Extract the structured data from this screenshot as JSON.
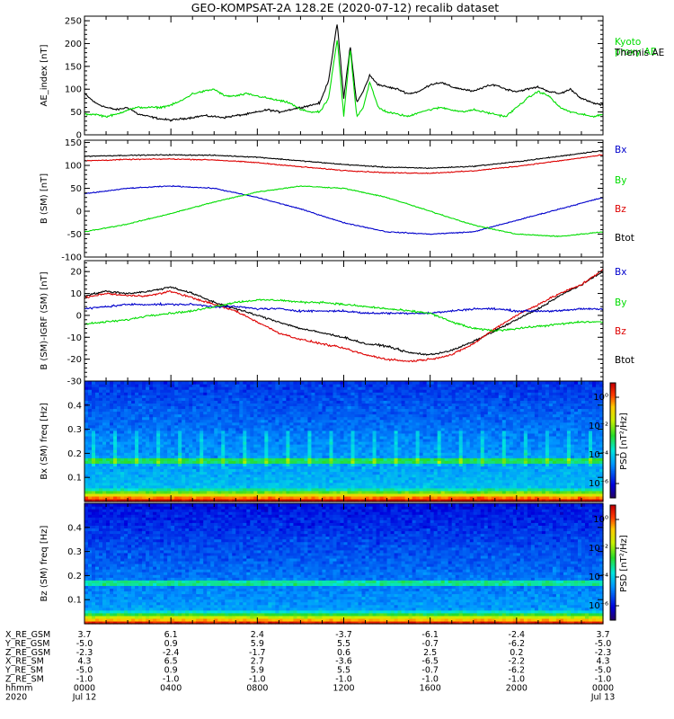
{
  "chart_data": {
    "title": "GEO-KOMPSAT-2A 128.2E (2020-07-12) recalib dataset",
    "panels": [
      {
        "type": "line",
        "ylabel": "AE_index [nT]",
        "ylim": [
          0,
          260
        ],
        "yticks": [
          0,
          50,
          100,
          150,
          200,
          250
        ],
        "legend": [
          {
            "name": "Kyoto proxy AE",
            "lines": [
              "Kyoto",
              "proxy AE"
            ],
            "color": "#00dd00"
          },
          {
            "name": "Themis AE",
            "lines": [
              "Themis AE"
            ],
            "color": "#000000"
          }
        ],
        "series": [
          {
            "name": "Themis AE",
            "color": "#000000",
            "x": [
              0,
              0.5,
              1,
              1.5,
              2,
              2.5,
              3,
              3.5,
              4,
              4.5,
              5,
              5.5,
              6,
              6.5,
              7,
              7.5,
              8,
              8.5,
              9,
              9.5,
              10,
              10.5,
              10.9,
              11.3,
              11.7,
              12.0,
              12.3,
              12.6,
              12.9,
              13.2,
              13.6,
              14,
              14.5,
              15,
              15.5,
              16,
              16.5,
              17,
              17.5,
              18,
              18.5,
              19,
              19.5,
              20,
              20.5,
              21,
              21.5,
              22,
              22.5,
              23,
              23.5,
              24
            ],
            "values": [
              90,
              70,
              60,
              55,
              60,
              45,
              40,
              35,
              32,
              35,
              38,
              42,
              40,
              38,
              42,
              45,
              50,
              55,
              50,
              55,
              60,
              65,
              70,
              120,
              245,
              80,
              195,
              70,
              95,
              130,
              110,
              105,
              100,
              90,
              95,
              110,
              115,
              105,
              100,
              95,
              105,
              110,
              100,
              95,
              100,
              105,
              95,
              90,
              100,
              80,
              70,
              65
            ]
          },
          {
            "name": "Kyoto proxy AE",
            "color": "#00dd00",
            "x": [
              0,
              0.5,
              1,
              1.5,
              2,
              2.5,
              3,
              3.5,
              4,
              4.5,
              5,
              5.5,
              6,
              6.5,
              7,
              7.5,
              8,
              8.5,
              9,
              9.5,
              10,
              10.5,
              10.9,
              11.3,
              11.7,
              12.0,
              12.3,
              12.6,
              12.9,
              13.2,
              13.6,
              14,
              14.5,
              15,
              15.5,
              16,
              16.5,
              17,
              17.5,
              18,
              18.5,
              19,
              19.5,
              20,
              20.5,
              21,
              21.5,
              22,
              22.5,
              23,
              23.5,
              24
            ],
            "values": [
              45,
              45,
              40,
              45,
              55,
              60,
              60,
              60,
              65,
              75,
              90,
              95,
              100,
              85,
              85,
              90,
              85,
              80,
              75,
              70,
              55,
              50,
              50,
              80,
              210,
              40,
              190,
              40,
              60,
              115,
              60,
              50,
              45,
              40,
              50,
              55,
              60,
              55,
              50,
              55,
              50,
              45,
              40,
              60,
              80,
              95,
              85,
              60,
              50,
              45,
              40,
              45
            ]
          }
        ]
      },
      {
        "type": "line",
        "ylabel": "B (SM) [nT]",
        "ylim": [
          -100,
          155
        ],
        "yticks": [
          -100,
          -50,
          0,
          50,
          100,
          150
        ],
        "legend": [
          {
            "name": "Bx",
            "lines": [
              "Bx"
            ],
            "color": "#0000cc"
          },
          {
            "name": "By",
            "lines": [
              "By"
            ],
            "color": "#00dd00"
          },
          {
            "name": "Bz",
            "lines": [
              "Bz"
            ],
            "color": "#dd0000"
          },
          {
            "name": "Btot",
            "lines": [
              "Btot"
            ],
            "color": "#000000"
          }
        ],
        "series": [
          {
            "name": "Btot",
            "color": "#000000",
            "x": [
              0,
              2,
              4,
              6,
              8,
              10,
              12,
              14,
              16,
              18,
              20,
              22,
              24
            ],
            "values": [
              120,
              122,
              123,
              122,
              118,
              110,
              102,
              96,
              94,
              98,
              108,
              120,
              133
            ]
          },
          {
            "name": "Bz",
            "color": "#dd0000",
            "x": [
              0,
              2,
              4,
              6,
              8,
              10,
              12,
              14,
              16,
              18,
              20,
              22,
              24
            ],
            "values": [
              110,
              113,
              114,
              112,
              106,
              97,
              89,
              84,
              83,
              88,
              98,
              110,
              123
            ]
          },
          {
            "name": "Bx",
            "color": "#0000cc",
            "x": [
              0,
              2,
              4,
              6,
              8,
              10,
              12,
              14,
              16,
              18,
              20,
              22,
              24
            ],
            "values": [
              38,
              50,
              55,
              50,
              30,
              5,
              -25,
              -45,
              -50,
              -45,
              -20,
              5,
              30
            ]
          },
          {
            "name": "By",
            "color": "#00dd00",
            "x": [
              0,
              2,
              4,
              6,
              8,
              10,
              12,
              14,
              16,
              18,
              20,
              22,
              24
            ],
            "values": [
              -45,
              -28,
              -5,
              20,
              42,
              55,
              50,
              30,
              0,
              -30,
              -50,
              -55,
              -45
            ]
          }
        ]
      },
      {
        "type": "line",
        "ylabel": "B (SM)-IGRF (SM) [nT]",
        "ylim": [
          -30,
          25
        ],
        "yticks": [
          -30,
          -20,
          -10,
          0,
          10,
          20
        ],
        "legend": [
          {
            "name": "Bx",
            "lines": [
              "Bx"
            ],
            "color": "#0000cc"
          },
          {
            "name": "By",
            "lines": [
              "By"
            ],
            "color": "#00dd00"
          },
          {
            "name": "Bz",
            "lines": [
              "Bz"
            ],
            "color": "#dd0000"
          },
          {
            "name": "Btot",
            "lines": [
              "Btot"
            ],
            "color": "#000000"
          }
        ],
        "series": [
          {
            "name": "Btot",
            "color": "#000000",
            "x": [
              0,
              1,
              2,
              3,
              4,
              5,
              6,
              7,
              8,
              9,
              10,
              11,
              12,
              13,
              14,
              15,
              16,
              17,
              18,
              19,
              20,
              21,
              22,
              23,
              24
            ],
            "values": [
              9,
              11,
              10,
              11,
              13,
              10,
              6,
              3,
              0,
              -3,
              -6,
              -8,
              -10,
              -13,
              -14,
              -17,
              -18,
              -16,
              -12,
              -7,
              -2,
              3,
              9,
              14,
              20
            ]
          },
          {
            "name": "Bz",
            "color": "#dd0000",
            "x": [
              0,
              1,
              2,
              3,
              4,
              5,
              6,
              7,
              8,
              9,
              10,
              11,
              12,
              13,
              14,
              15,
              16,
              17,
              18,
              19,
              20,
              21,
              22,
              23,
              24
            ],
            "values": [
              8,
              10,
              9,
              9,
              11,
              8,
              5,
              2,
              -3,
              -8,
              -11,
              -13,
              -15,
              -18,
              -20,
              -21,
              -20,
              -18,
              -13,
              -6,
              0,
              5,
              10,
              14,
              21
            ]
          },
          {
            "name": "Bx",
            "color": "#0000cc",
            "x": [
              0,
              1,
              2,
              3,
              4,
              5,
              6,
              7,
              8,
              9,
              10,
              11,
              12,
              13,
              14,
              15,
              16,
              17,
              18,
              19,
              20,
              21,
              22,
              23,
              24
            ],
            "values": [
              3,
              4,
              5,
              5,
              5,
              5,
              4,
              4,
              3,
              3,
              2,
              2,
              2,
              1,
              1,
              1,
              1,
              2,
              3,
              3,
              2,
              2,
              2,
              3,
              3
            ]
          },
          {
            "name": "By",
            "color": "#00dd00",
            "x": [
              0,
              1,
              2,
              3,
              4,
              5,
              6,
              7,
              8,
              9,
              10,
              11,
              12,
              13,
              14,
              15,
              16,
              17,
              18,
              19,
              20,
              21,
              22,
              23,
              24
            ],
            "values": [
              -4,
              -3,
              -2,
              0,
              1,
              2,
              4,
              6,
              7,
              7,
              6,
              6,
              5,
              4,
              3,
              2,
              1,
              -3,
              -6,
              -7,
              -6,
              -5,
              -4,
              -3,
              -3
            ]
          }
        ]
      },
      {
        "type": "heatmap",
        "ylabel": "Bx (SM) freq [Hz]",
        "ylim": [
          0,
          0.5
        ],
        "yticks": [
          0.1,
          0.2,
          0.3,
          0.4
        ],
        "colorbar_label": "PSD [nT²/Hz]",
        "colorbar_ticks": [
          "10⁰",
          "10⁻²",
          "10⁻⁴",
          "10⁻⁶"
        ],
        "colorbar_tick_values": [
          0,
          -2,
          -4,
          -6
        ],
        "colorbar_range": [
          -7,
          1
        ]
      },
      {
        "type": "heatmap",
        "ylabel": "Bz (SM) freq [Hz]",
        "ylim": [
          0,
          0.5
        ],
        "yticks": [
          0.1,
          0.2,
          0.3,
          0.4
        ],
        "colorbar_label": "PSD [nT²/Hz]",
        "colorbar_ticks": [
          "10⁰",
          "10⁻²",
          "10⁻⁴",
          "10⁻⁶"
        ],
        "colorbar_tick_values": [
          0,
          -2,
          -4,
          -6
        ],
        "colorbar_range": [
          -7,
          1
        ]
      }
    ],
    "xaxis": {
      "range_hours": [
        0,
        24
      ],
      "major_ticks_hours": [
        0,
        4,
        8,
        12,
        16,
        20,
        24
      ],
      "minor_tick_step_hours": 1,
      "ephemeris_columns_hours": [
        0,
        4,
        8,
        12,
        16,
        20,
        24
      ],
      "rows": [
        {
          "label": "X_RE_GSM",
          "values": [
            "3.7",
            "6.1",
            "2.4",
            "-3.7",
            "-6.1",
            "-2.4",
            "3.7"
          ]
        },
        {
          "label": "Y_RE_GSM",
          "values": [
            "-5.0",
            "0.9",
            "5.9",
            "5.5",
            "-0.7",
            "-6.2",
            "-5.0"
          ]
        },
        {
          "label": "Z_RE_GSM",
          "values": [
            "-2.3",
            "-2.4",
            "-1.7",
            "0.6",
            "2.5",
            "0.2",
            "-2.3"
          ]
        },
        {
          "label": "X_RE_SM",
          "values": [
            "4.3",
            "6.5",
            "2.7",
            "-3.6",
            "-6.5",
            "-2.2",
            "4.3"
          ]
        },
        {
          "label": "Y_RE_SM",
          "values": [
            "-5.0",
            "0.9",
            "5.9",
            "5.5",
            "-0.7",
            "-6.2",
            "-5.0"
          ]
        },
        {
          "label": "Z_RE_SM",
          "values": [
            "-1.0",
            "-1.0",
            "-1.0",
            "-1.0",
            "-1.0",
            "-1.0",
            "-1.0"
          ]
        },
        {
          "label": "hhmm",
          "values": [
            "0000",
            "0400",
            "0800",
            "1200",
            "1600",
            "2000",
            "0000"
          ]
        },
        {
          "label": "2020",
          "values": [
            "Jul 12",
            "",
            "",
            "",
            "",
            "",
            "Jul 13"
          ]
        }
      ]
    }
  }
}
